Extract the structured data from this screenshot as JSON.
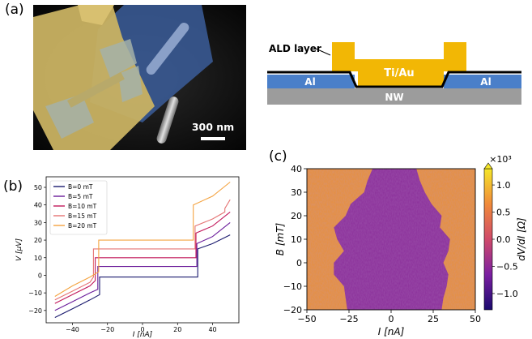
{
  "panels": {
    "a": "(a)",
    "b": "(b)",
    "c": "(c)"
  },
  "sem": {
    "scalebar_label": "300 nm"
  },
  "schematic": {
    "ald_label": "ALD layer",
    "tiau_label": "Ti/Au",
    "al_left_label": "Al",
    "al_right_label": "Al",
    "nw_label": "NW",
    "colors": {
      "tiau": "#f2b705",
      "al": "#4a7fc9",
      "nw": "#9c9c9c",
      "ald": "#000000"
    }
  },
  "chart_data": [
    {
      "type": "line",
      "xlabel": "I [nA]",
      "ylabel": "V [μV]",
      "xlim": [
        -55,
        55
      ],
      "ylim": [
        -27,
        56
      ],
      "xticks": [
        -40,
        -20,
        0,
        20,
        40
      ],
      "yticks": [
        -20,
        -10,
        0,
        10,
        20,
        30,
        40,
        50
      ],
      "legend_loc": "top-left",
      "series": [
        {
          "name": "B=0 mT",
          "color": "#1a1a6e",
          "x": [
            -50,
            -40,
            -30,
            -24.5,
            -24.5,
            0,
            31.5,
            31.5,
            40,
            50
          ],
          "y": [
            -24,
            -19,
            -14,
            -11,
            -1,
            -1,
            -1,
            15,
            18,
            23
          ]
        },
        {
          "name": "B=5 mT",
          "color": "#6a1b9a",
          "x": [
            -50,
            -40,
            -30,
            -25.5,
            -25.5,
            0,
            31,
            31,
            40,
            50
          ],
          "y": [
            -20,
            -15,
            -10,
            -8,
            5,
            5,
            5,
            18,
            22,
            30
          ]
        },
        {
          "name": "B=10 mT",
          "color": "#c2185b",
          "x": [
            -50,
            -40,
            -30,
            -27,
            -27,
            0,
            30.5,
            30.5,
            40,
            50
          ],
          "y": [
            -16,
            -11,
            -6,
            -3,
            10,
            10,
            10,
            24,
            28,
            36
          ]
        },
        {
          "name": "B=15 mT",
          "color": "#e57373",
          "x": [
            -50,
            -40,
            -30,
            -28,
            -28,
            0,
            30,
            30,
            40,
            47,
            47,
            50
          ],
          "y": [
            -14,
            -9,
            -4,
            -1,
            15,
            15,
            15,
            28,
            32,
            36,
            38,
            43
          ]
        },
        {
          "name": "B=20 mT",
          "color": "#f4a340",
          "x": [
            -50,
            -40,
            -30,
            -25,
            -25,
            0,
            29,
            29,
            40,
            50
          ],
          "y": [
            -12,
            -6,
            -1,
            2,
            20,
            20,
            20,
            40,
            45,
            53
          ]
        }
      ]
    },
    {
      "type": "heatmap",
      "xlabel": "I [nA]",
      "ylabel": "B [mT]",
      "xlim": [
        -50,
        50
      ],
      "ylim": [
        -20,
        40
      ],
      "xticks": [
        -50,
        -25,
        0,
        25,
        50
      ],
      "yticks": [
        -20,
        -10,
        0,
        10,
        20,
        30,
        40
      ],
      "colorbar": {
        "label": "dV/dI [Ω]",
        "exponent_label": "×10³",
        "range": [
          -1.3,
          1.3
        ],
        "ticks": [
          1.0,
          0.5,
          0.0,
          -0.5,
          -1.0
        ],
        "tick_labels": [
          "1.0",
          "0.5",
          "0.0",
          "−0.5",
          "−1.0"
        ]
      },
      "superconducting_boundary": {
        "B": [
          -20,
          -15,
          -10,
          -5,
          0,
          5,
          10,
          15,
          20,
          25,
          30,
          35,
          40
        ],
        "I_left": [
          -26,
          -27,
          -28,
          -34,
          -34,
          -28,
          -32,
          -34,
          -27,
          -24,
          -16,
          -14,
          -11
        ],
        "I_right": [
          30,
          31,
          33,
          34,
          31,
          34,
          35,
          29,
          30,
          24,
          20,
          17,
          15
        ]
      },
      "colors": {
        "normal": "#e8903a",
        "superconducting": "#8b2f9a"
      }
    }
  ]
}
